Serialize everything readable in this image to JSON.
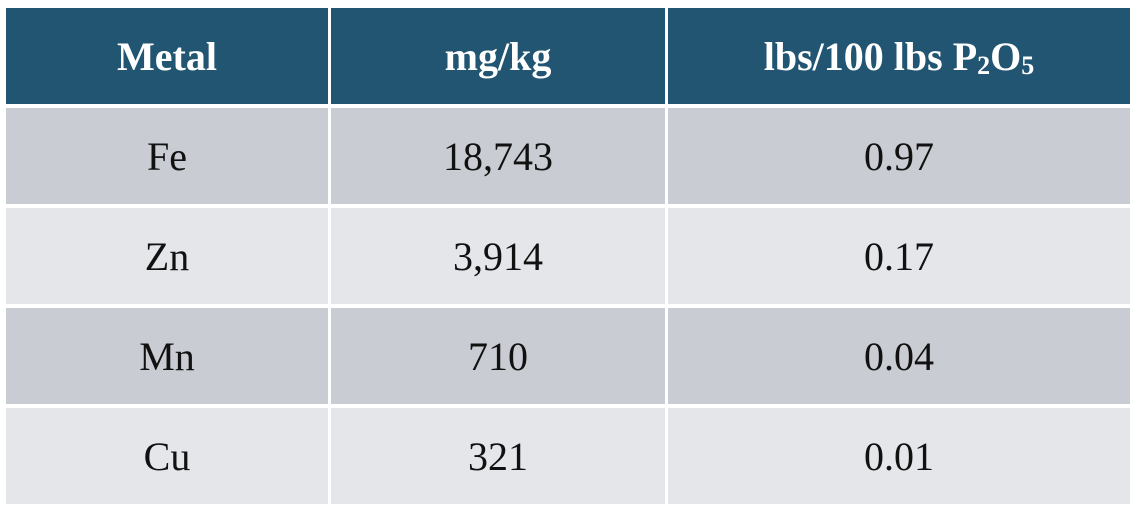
{
  "table": {
    "headers": {
      "col1": "Metal",
      "col2": "mg/kg",
      "col3_prefix": "lbs/100 lbs P",
      "col3_sub1": "2",
      "col3_mid": "O",
      "col3_sub2": "5"
    },
    "rows": [
      {
        "metal": "Fe",
        "mg_kg": "18,743",
        "lbs_per_100": "0.97"
      },
      {
        "metal": "Zn",
        "mg_kg": "3,914",
        "lbs_per_100": "0.17"
      },
      {
        "metal": "Mn",
        "mg_kg": "710",
        "lbs_per_100": "0.04"
      },
      {
        "metal": "Cu",
        "mg_kg": "321",
        "lbs_per_100": "0.01"
      }
    ],
    "colors": {
      "header_bg": "#215572",
      "header_text": "#ffffff",
      "row_dark": "#c9ccd2",
      "row_light": "#e5e6ea"
    }
  }
}
